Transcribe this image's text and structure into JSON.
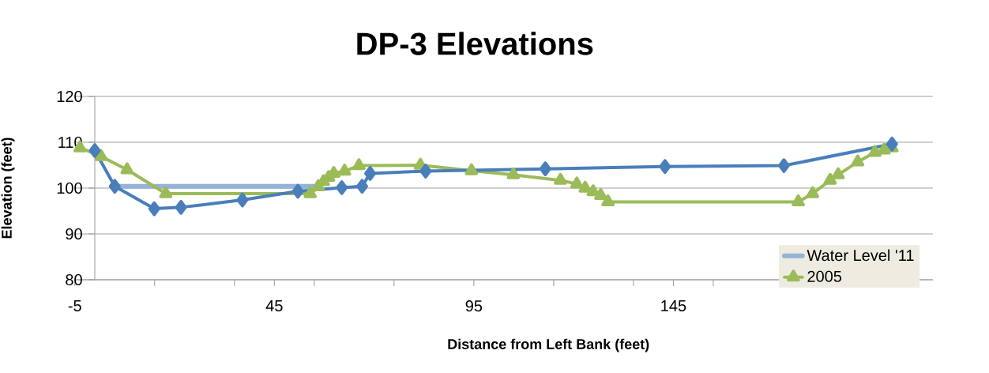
{
  "chart_data": {
    "type": "line",
    "title": "DP-3 Elevations",
    "xlabel": "Distance from Left Bank (feet)",
    "ylabel": "Elevation (feet)",
    "xlim": [
      -5,
      210
    ],
    "xticks": [
      -5,
      {
        "value": 15,
        "label": null
      },
      {
        "value": 35,
        "label": null
      },
      45,
      {
        "value": 55,
        "label": null
      },
      {
        "value": 75,
        "label": null
      },
      95,
      {
        "value": 115,
        "label": null
      },
      {
        "value": 135,
        "label": null
      },
      145,
      {
        "value": 155,
        "label": null
      }
    ],
    "ylim": [
      80,
      120
    ],
    "yticks": [
      80,
      90,
      100,
      110,
      120
    ],
    "grid": "y",
    "legend": "bottom right",
    "line_style": "solid",
    "series": [
      {
        "name": "Water Level '11",
        "color": "#95b3d7",
        "marker": "none",
        "x": [
          5,
          55.6
        ],
        "values": [
          100.4,
          100.4
        ]
      },
      {
        "name": "2005",
        "color": "#9bbb59",
        "marker": "triangle",
        "x": [
          -3.7,
          1.6,
          8.1,
          17.8,
          54.0,
          56.0,
          57.3,
          58.6,
          59.9,
          62.6,
          66.2,
          81.6,
          94.4,
          104.9,
          116.7,
          120.8,
          122.9,
          124.9,
          126.8,
          128.6,
          176.3,
          179.9,
          184.3,
          186.3,
          191.2,
          195.5,
          197.8,
          199.8
        ],
        "values": [
          108.8,
          106.9,
          104.0,
          98.8,
          98.8,
          100.3,
          101.4,
          102.3,
          103.2,
          103.7,
          104.9,
          105.0,
          103.8,
          102.9,
          101.7,
          100.9,
          100.0,
          99.2,
          98.4,
          97.0,
          97.0,
          98.8,
          101.7,
          102.9,
          105.7,
          107.8,
          108.3,
          108.8
        ]
      },
      {
        "color": "#4a7ebb",
        "marker": "diamond",
        "x": [
          0,
          5.0,
          14.9,
          21.6,
          37.0,
          50.9,
          61.9,
          67.0,
          69.0,
          82.9,
          112.9,
          142.9,
          172.7,
          199.8
        ],
        "values": [
          108.2,
          100.4,
          95.5,
          95.8,
          97.4,
          99.3,
          100.1,
          100.4,
          103.2,
          103.7,
          104.2,
          104.7,
          104.9,
          109.6
        ]
      }
    ]
  }
}
